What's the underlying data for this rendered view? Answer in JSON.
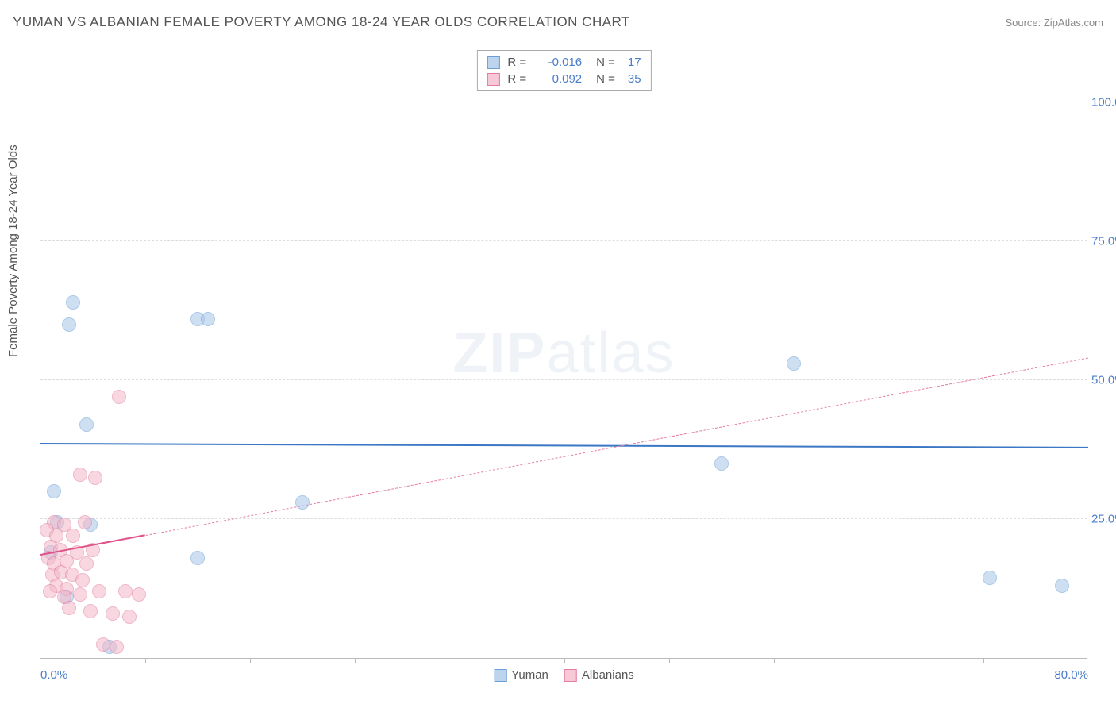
{
  "title": "YUMAN VS ALBANIAN FEMALE POVERTY AMONG 18-24 YEAR OLDS CORRELATION CHART",
  "source_label": "Source: ZipAtlas.com",
  "watermark_zip": "ZIP",
  "watermark_atlas": "atlas",
  "yaxis_title": "Female Poverty Among 18-24 Year Olds",
  "chart": {
    "type": "scatter",
    "background_color": "#ffffff",
    "grid_color": "#dddddd",
    "axis_color": "#bbbbbb",
    "text_color": "#555555",
    "value_color": "#4a7ec9",
    "xlim": [
      0,
      80
    ],
    "ylim": [
      0,
      110
    ],
    "yticks": [
      {
        "v": 25,
        "label": "25.0%"
      },
      {
        "v": 50,
        "label": "50.0%"
      },
      {
        "v": 75,
        "label": "75.0%"
      },
      {
        "v": 100,
        "label": "100.0%"
      }
    ],
    "xticks_major": [
      {
        "v": 0,
        "label": "0.0%"
      },
      {
        "v": 80,
        "label": "80.0%"
      }
    ],
    "xticks_minor": [
      8,
      16,
      24,
      32,
      40,
      48,
      56,
      64,
      72
    ],
    "series": [
      {
        "name": "Yuman",
        "color_fill": "#a8c6e8",
        "color_stroke": "#6a9ed4",
        "swatch_fill": "#bcd4ed",
        "swatch_stroke": "#6a9ed4",
        "marker_radius": 9,
        "marker_opacity": 0.55,
        "r_label": "R =",
        "r_value": "-0.016",
        "n_label": "N =",
        "n_value": "17",
        "trend": {
          "style": "solid",
          "color": "#3b77c4",
          "y_start": 38.5,
          "y_end": 37.8
        },
        "points": [
          {
            "x": 2.5,
            "y": 64
          },
          {
            "x": 2.2,
            "y": 60
          },
          {
            "x": 12.0,
            "y": 61
          },
          {
            "x": 12.8,
            "y": 61
          },
          {
            "x": 3.5,
            "y": 42
          },
          {
            "x": 1.0,
            "y": 30
          },
          {
            "x": 20.0,
            "y": 28
          },
          {
            "x": 1.3,
            "y": 24.5
          },
          {
            "x": 3.8,
            "y": 24
          },
          {
            "x": 0.8,
            "y": 19
          },
          {
            "x": 12.0,
            "y": 18
          },
          {
            "x": 2.0,
            "y": 11
          },
          {
            "x": 5.3,
            "y": 2
          },
          {
            "x": 57.5,
            "y": 53
          },
          {
            "x": 52.0,
            "y": 35
          },
          {
            "x": 72.5,
            "y": 14.5
          },
          {
            "x": 78.0,
            "y": 13
          }
        ]
      },
      {
        "name": "Albanians",
        "color_fill": "#f4b8c8",
        "color_stroke": "#e37ca0",
        "swatch_fill": "#f7c9d6",
        "swatch_stroke": "#e37ca0",
        "marker_radius": 9,
        "marker_opacity": 0.55,
        "r_label": "R =",
        "r_value": "0.092",
        "n_label": "N =",
        "n_value": "35",
        "trend": {
          "style": "dashed",
          "color": "#e37ca0",
          "y_start": 18.5,
          "y_end": 54
        },
        "trend_solid_portion": {
          "x_end": 8,
          "color": "#e0548a"
        },
        "points": [
          {
            "x": 6.0,
            "y": 47
          },
          {
            "x": 3.0,
            "y": 33
          },
          {
            "x": 4.2,
            "y": 32.5
          },
          {
            "x": 1.0,
            "y": 24.5
          },
          {
            "x": 1.8,
            "y": 24
          },
          {
            "x": 3.4,
            "y": 24.5
          },
          {
            "x": 0.5,
            "y": 23
          },
          {
            "x": 1.2,
            "y": 22
          },
          {
            "x": 2.5,
            "y": 22
          },
          {
            "x": 0.8,
            "y": 20
          },
          {
            "x": 1.5,
            "y": 19.5
          },
          {
            "x": 2.8,
            "y": 19
          },
          {
            "x": 4.0,
            "y": 19.5
          },
          {
            "x": 0.6,
            "y": 18
          },
          {
            "x": 1.0,
            "y": 17
          },
          {
            "x": 2.0,
            "y": 17.5
          },
          {
            "x": 3.5,
            "y": 17
          },
          {
            "x": 0.9,
            "y": 15
          },
          {
            "x": 1.6,
            "y": 15.5
          },
          {
            "x": 2.4,
            "y": 15
          },
          {
            "x": 3.2,
            "y": 14
          },
          {
            "x": 1.2,
            "y": 13
          },
          {
            "x": 2.0,
            "y": 12.5
          },
          {
            "x": 0.7,
            "y": 12
          },
          {
            "x": 1.8,
            "y": 11
          },
          {
            "x": 3.0,
            "y": 11.5
          },
          {
            "x": 4.5,
            "y": 12
          },
          {
            "x": 6.5,
            "y": 12
          },
          {
            "x": 7.5,
            "y": 11.5
          },
          {
            "x": 2.2,
            "y": 9
          },
          {
            "x": 3.8,
            "y": 8.5
          },
          {
            "x": 5.5,
            "y": 8
          },
          {
            "x": 6.8,
            "y": 7.5
          },
          {
            "x": 4.8,
            "y": 2.5
          },
          {
            "x": 5.8,
            "y": 2
          }
        ]
      }
    ]
  }
}
